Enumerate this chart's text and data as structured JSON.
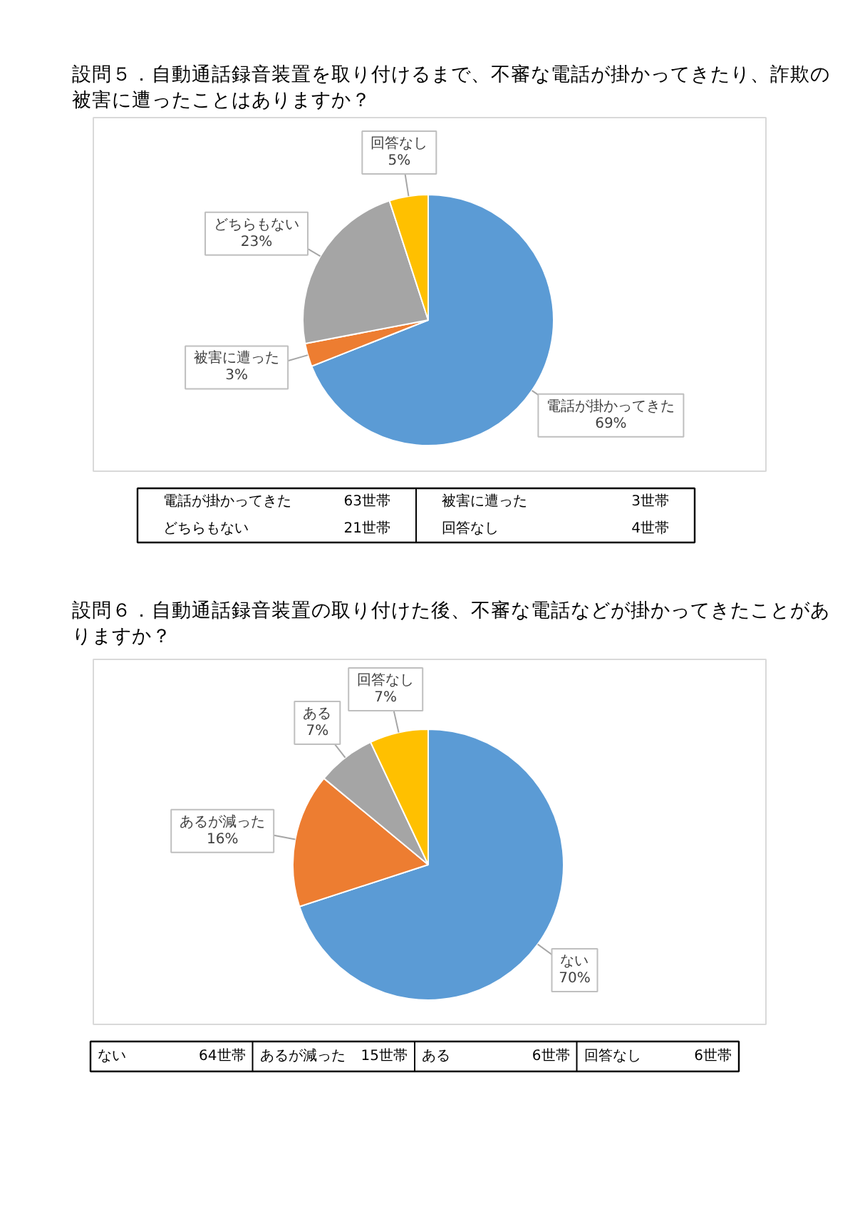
{
  "chart_data": [
    {
      "type": "pie",
      "title": "設問５．自動通話録音装置を取り付けるまで、不審な電話が掛かってきたり、詐欺の被害に遭ったことはありますか？",
      "categories": [
        "電話が掛かってきた",
        "被害に遭った",
        "どちらもない",
        "回答なし"
      ],
      "values": [
        69,
        3,
        23,
        5
      ],
      "colors": [
        "#5b9bd5",
        "#ed7d31",
        "#a5a5a5",
        "#ffc000"
      ],
      "value_labels": [
        "69%",
        "3%",
        "23%",
        "5%"
      ],
      "annotations": [
        "電話が掛かってきた",
        "63世帯",
        "被害に遭った",
        "3世帯",
        "どちらもない",
        "21世帯",
        "回答なし",
        "4世帯"
      ]
    },
    {
      "type": "pie",
      "title": "設問６．自動通話録音装置の取り付けた後、不審な電話などが掛かってきたことがありますか？",
      "categories": [
        "ない",
        "あるが減った",
        "ある",
        "回答なし"
      ],
      "values": [
        70,
        16,
        7,
        7
      ],
      "colors": [
        "#5b9bd5",
        "#ed7d31",
        "#a5a5a5",
        "#ffc000"
      ],
      "value_labels": [
        "70%",
        "16%",
        "7%",
        "7%"
      ],
      "annotations": [
        "ない",
        "64世帯",
        "あるが減った",
        "15世帯",
        "ある",
        "6世帯",
        "回答なし",
        "6世帯"
      ]
    }
  ]
}
